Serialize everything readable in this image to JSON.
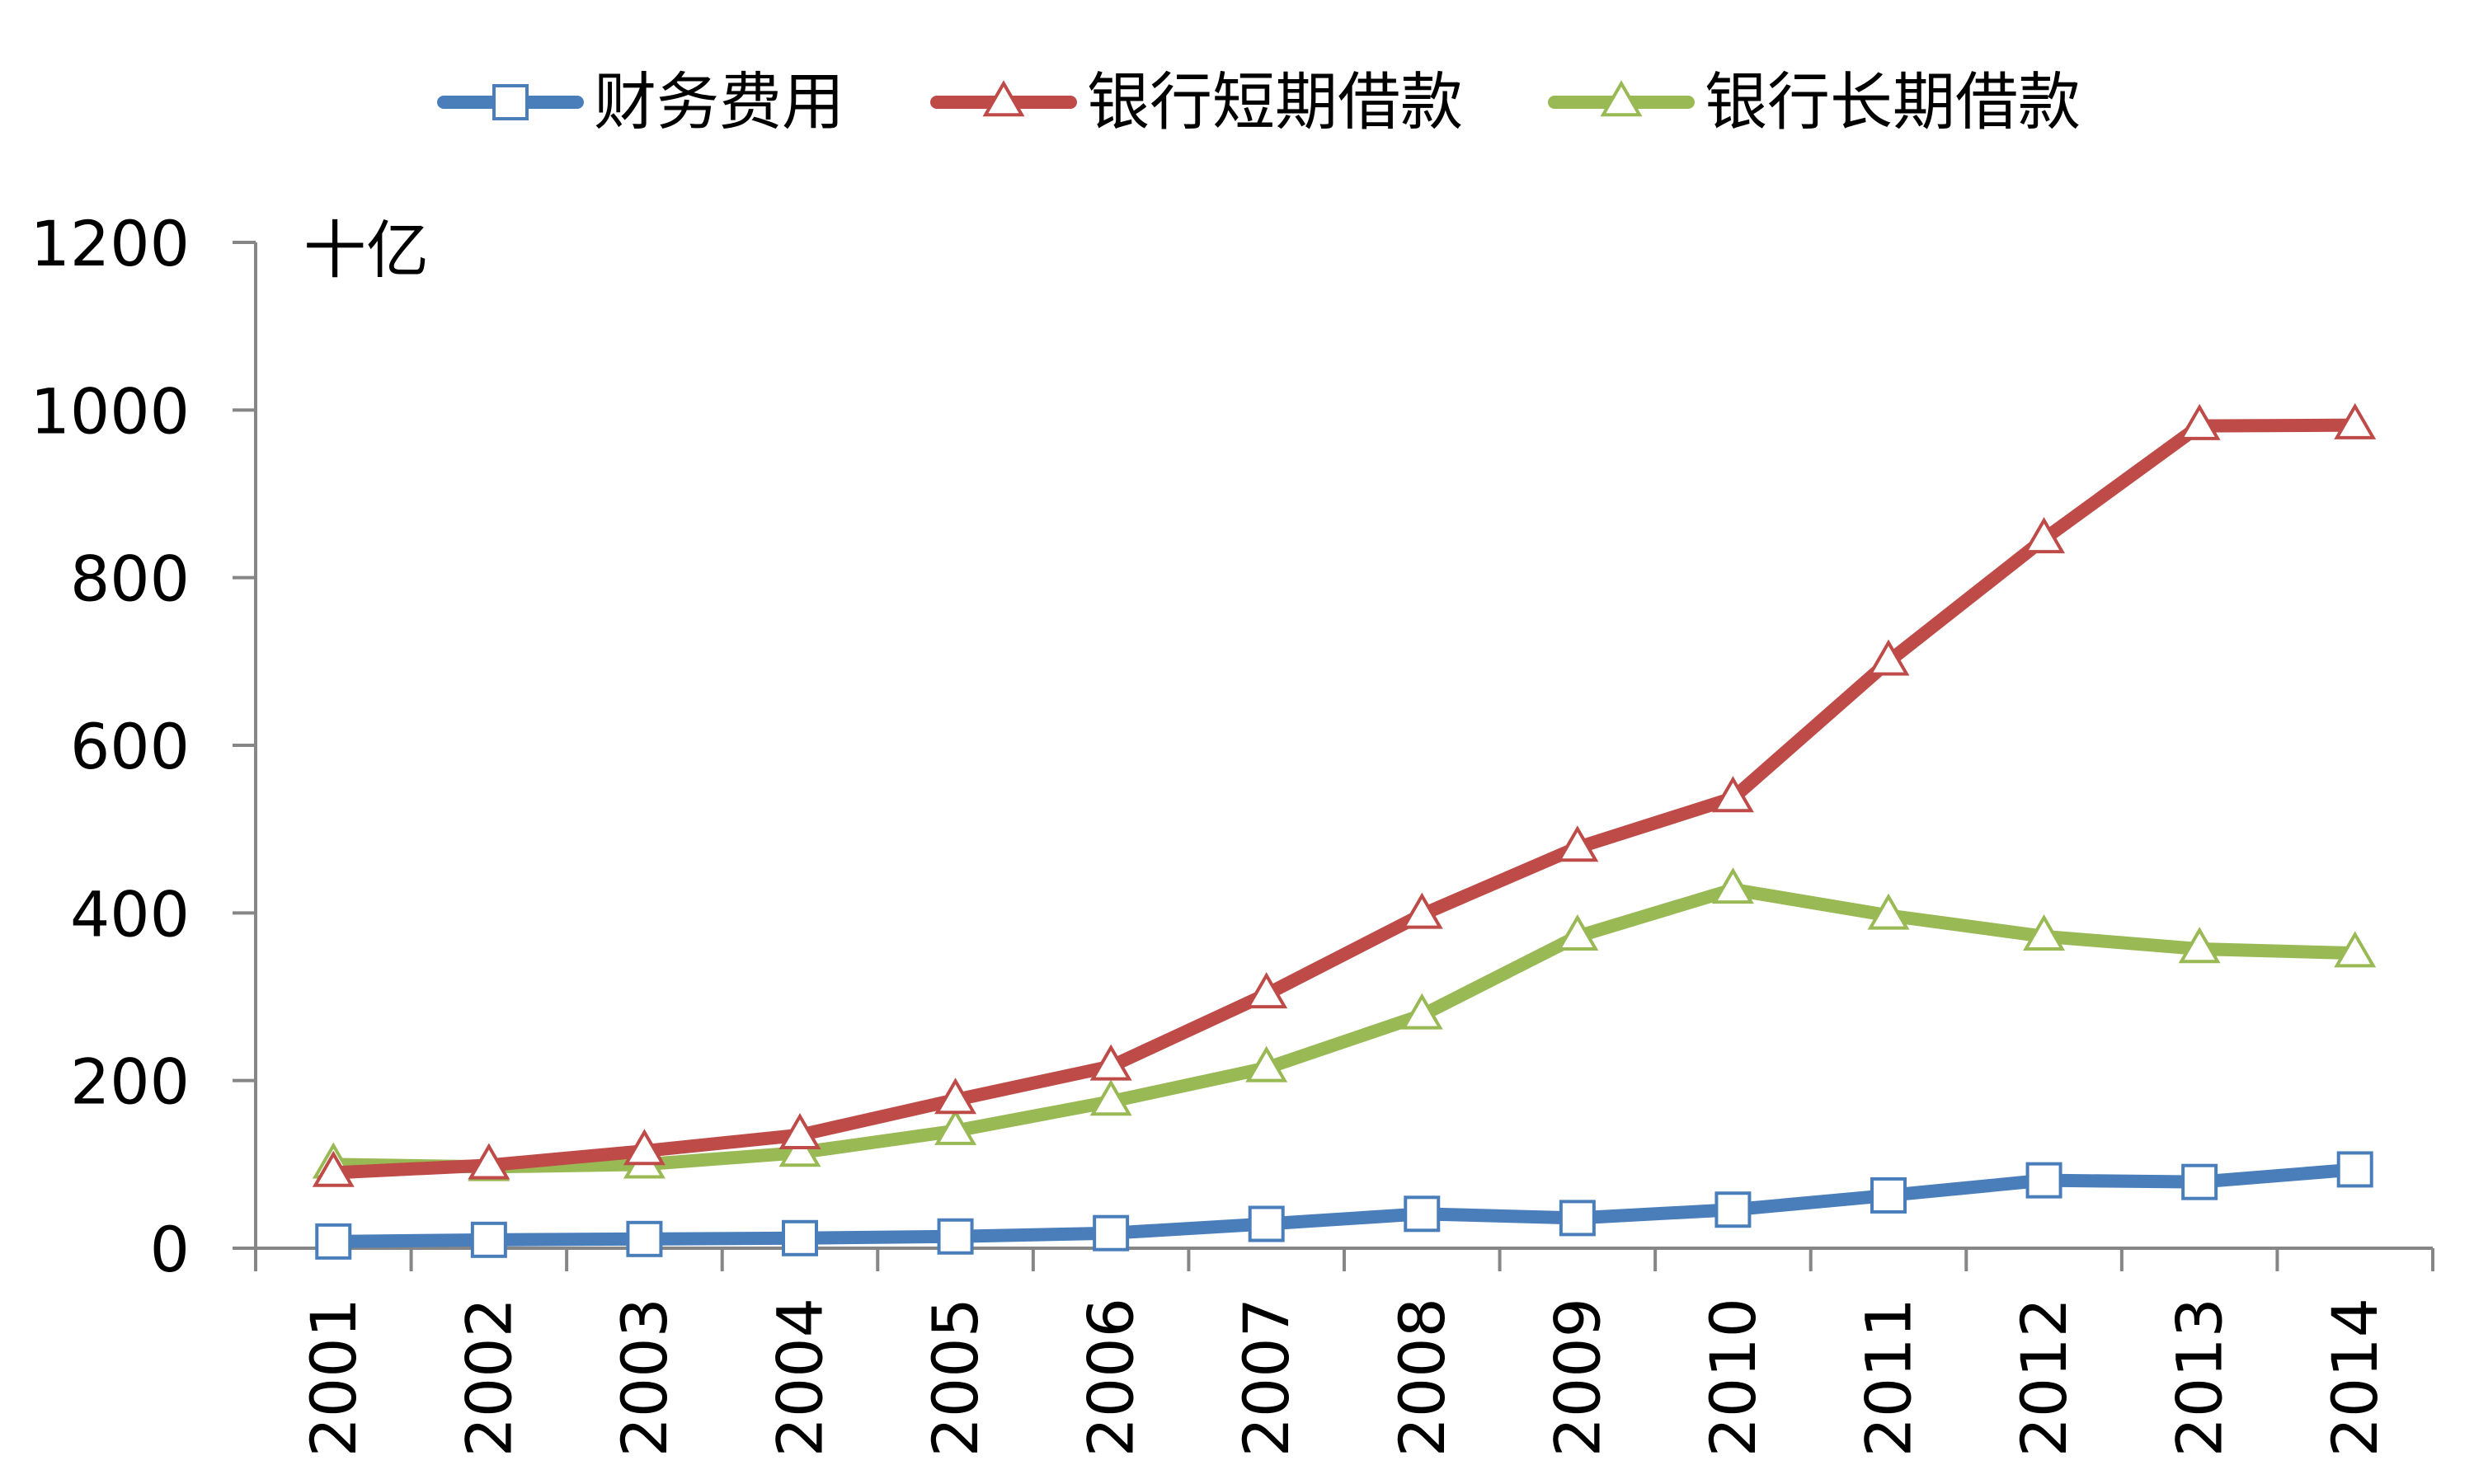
{
  "chart_data": {
    "type": "line",
    "unit_label": "十亿",
    "categories": [
      "2001",
      "2002",
      "2003",
      "2004",
      "2005",
      "2006",
      "2007",
      "2008",
      "2009",
      "2010",
      "2011",
      "2012",
      "2013",
      "2014"
    ],
    "ylim": [
      0,
      1200
    ],
    "yticks": [
      "0",
      "200",
      "400",
      "600",
      "800",
      "1000",
      "1200"
    ],
    "grid": false,
    "legend_position": "top",
    "series": [
      {
        "name": "财务费用",
        "color": "#4a7ebb",
        "marker": "square",
        "values": [
          8,
          10,
          11,
          12,
          14,
          18,
          29,
          41,
          36,
          46,
          63,
          81,
          79,
          94
        ]
      },
      {
        "name": "银行短期借款",
        "color": "#be4b48",
        "marker": "triangle",
        "values": [
          90,
          99,
          116,
          135,
          177,
          217,
          303,
          398,
          478,
          537,
          700,
          846,
          981,
          982
        ]
      },
      {
        "name": "银行长期借款",
        "color": "#98b954",
        "marker": "triangle",
        "values": [
          100,
          97,
          100,
          114,
          140,
          175,
          215,
          278,
          372,
          428,
          397,
          372,
          357,
          352
        ]
      }
    ]
  }
}
